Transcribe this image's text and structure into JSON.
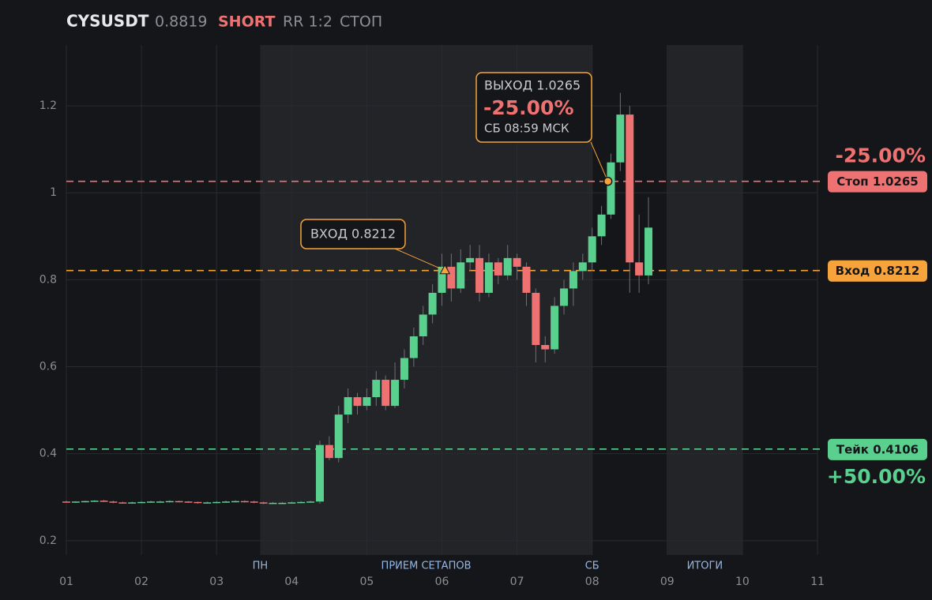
{
  "chart_data": {
    "type": "candlestick",
    "header": {
      "symbol": "CYSUSDT",
      "price": "0.8819",
      "side": "SHORT",
      "rr": "RR 1:2",
      "status": "СТОП"
    },
    "x": [
      1,
      1.125,
      1.25,
      1.375,
      1.5,
      1.625,
      1.75,
      1.875,
      2,
      2.125,
      2.25,
      2.375,
      2.5,
      2.625,
      2.75,
      2.875,
      3,
      3.125,
      3.25,
      3.375,
      3.5,
      3.625,
      3.75,
      3.875,
      4,
      4.125,
      4.25,
      4.375,
      4.5,
      4.625,
      4.75,
      4.875,
      5,
      5.125,
      5.25,
      5.375,
      5.5,
      5.625,
      5.75,
      5.875,
      6,
      6.125,
      6.25,
      6.375,
      6.5,
      6.625,
      6.75,
      6.875,
      7,
      7.125,
      7.25,
      7.375,
      7.5,
      7.625,
      7.75,
      7.875,
      8,
      8.125,
      8.25,
      8.375,
      8.5,
      8.625,
      8.75
    ],
    "open": [
      0.29,
      0.289,
      0.29,
      0.291,
      0.292,
      0.29,
      0.288,
      0.287,
      0.288,
      0.289,
      0.29,
      0.29,
      0.291,
      0.29,
      0.289,
      0.287,
      0.288,
      0.289,
      0.29,
      0.291,
      0.29,
      0.288,
      0.286,
      0.287,
      0.287,
      0.288,
      0.289,
      0.29,
      0.42,
      0.39,
      0.49,
      0.53,
      0.51,
      0.53,
      0.57,
      0.51,
      0.57,
      0.62,
      0.67,
      0.72,
      0.77,
      0.83,
      0.78,
      0.84,
      0.85,
      0.77,
      0.84,
      0.81,
      0.85,
      0.83,
      0.77,
      0.65,
      0.64,
      0.74,
      0.78,
      0.82,
      0.84,
      0.9,
      0.95,
      1.07,
      1.18,
      0.84,
      0.81
    ],
    "close": [
      0.289,
      0.29,
      0.291,
      0.292,
      0.29,
      0.288,
      0.287,
      0.288,
      0.289,
      0.29,
      0.29,
      0.291,
      0.29,
      0.289,
      0.287,
      0.288,
      0.289,
      0.29,
      0.291,
      0.29,
      0.288,
      0.286,
      0.287,
      0.287,
      0.288,
      0.289,
      0.29,
      0.42,
      0.39,
      0.49,
      0.53,
      0.51,
      0.53,
      0.57,
      0.51,
      0.57,
      0.62,
      0.67,
      0.72,
      0.77,
      0.83,
      0.78,
      0.84,
      0.85,
      0.77,
      0.84,
      0.81,
      0.85,
      0.83,
      0.77,
      0.65,
      0.64,
      0.74,
      0.78,
      0.82,
      0.84,
      0.9,
      0.95,
      1.07,
      1.18,
      0.84,
      0.81,
      0.92
    ],
    "high": [
      0.292,
      0.291,
      0.292,
      0.293,
      0.294,
      0.292,
      0.29,
      0.29,
      0.291,
      0.292,
      0.292,
      0.293,
      0.292,
      0.291,
      0.29,
      0.29,
      0.291,
      0.292,
      0.293,
      0.293,
      0.292,
      0.29,
      0.289,
      0.289,
      0.29,
      0.291,
      0.292,
      0.43,
      0.44,
      0.51,
      0.55,
      0.54,
      0.55,
      0.59,
      0.58,
      0.61,
      0.64,
      0.69,
      0.74,
      0.79,
      0.86,
      0.86,
      0.87,
      0.88,
      0.88,
      0.86,
      0.85,
      0.88,
      0.86,
      0.84,
      0.78,
      0.67,
      0.76,
      0.8,
      0.84,
      0.86,
      0.92,
      0.97,
      1.09,
      1.23,
      1.2,
      0.95,
      0.99
    ],
    "low": [
      0.287,
      0.287,
      0.288,
      0.289,
      0.289,
      0.286,
      0.285,
      0.285,
      0.286,
      0.287,
      0.288,
      0.288,
      0.288,
      0.287,
      0.285,
      0.285,
      0.286,
      0.287,
      0.288,
      0.288,
      0.286,
      0.284,
      0.284,
      0.285,
      0.285,
      0.286,
      0.287,
      0.285,
      0.385,
      0.38,
      0.47,
      0.49,
      0.5,
      0.51,
      0.5,
      0.505,
      0.55,
      0.6,
      0.65,
      0.7,
      0.74,
      0.75,
      0.77,
      0.82,
      0.75,
      0.76,
      0.79,
      0.8,
      0.8,
      0.74,
      0.61,
      0.61,
      0.63,
      0.72,
      0.74,
      0.8,
      0.82,
      0.88,
      0.94,
      1.05,
      0.77,
      0.77,
      0.79
    ],
    "up_color": "#5ad08f",
    "down_color": "#ef7272",
    "xlim": [
      1,
      11
    ],
    "xticks": [
      {
        "value": 1,
        "label": "01"
      },
      {
        "value": 2,
        "label": "02"
      },
      {
        "value": 3,
        "label": "03"
      },
      {
        "value": 4,
        "label": "04"
      },
      {
        "value": 5,
        "label": "05"
      },
      {
        "value": 6,
        "label": "06"
      },
      {
        "value": 7,
        "label": "07"
      },
      {
        "value": 8,
        "label": "08"
      },
      {
        "value": 9,
        "label": "09"
      },
      10,
      11
    ],
    "ylim": [
      0.167,
      1.34
    ],
    "yticks": [
      0.2,
      0.4,
      0.6,
      0.8,
      1,
      1.2
    ],
    "grid": true,
    "shaded_ranges": [
      {
        "start": 3.58,
        "end": 8
      },
      {
        "start": 9,
        "end": 10
      }
    ],
    "x_annotations": [
      {
        "x": 3.58,
        "label": "ПН"
      },
      {
        "x": 5.79,
        "label": "ПРИЕМ СЕТАПОВ"
      },
      {
        "x": 8,
        "label": "СБ"
      },
      {
        "x": 9.5,
        "label": "ИТОГИ"
      }
    ],
    "levels": [
      {
        "name": "Стоп 1.0265",
        "value": 1.0265,
        "color": "#ef7272",
        "pct": "-25.00%"
      },
      {
        "name": "Вход 0.8212",
        "value": 0.8212,
        "color": "#f5a33a"
      },
      {
        "name": "Тейк 0.4106",
        "value": 0.4106,
        "color": "#5ad08f",
        "pct": "+50.00%"
      }
    ],
    "entry": {
      "x": 6.04,
      "value": 0.8212,
      "label": "ВХОД 0.8212"
    },
    "exit": {
      "x": 8.21,
      "value": 1.0265,
      "label": "ВЫХОД 1.0265",
      "result": "-25.00%",
      "time": "СБ 08:59 МСК"
    }
  }
}
